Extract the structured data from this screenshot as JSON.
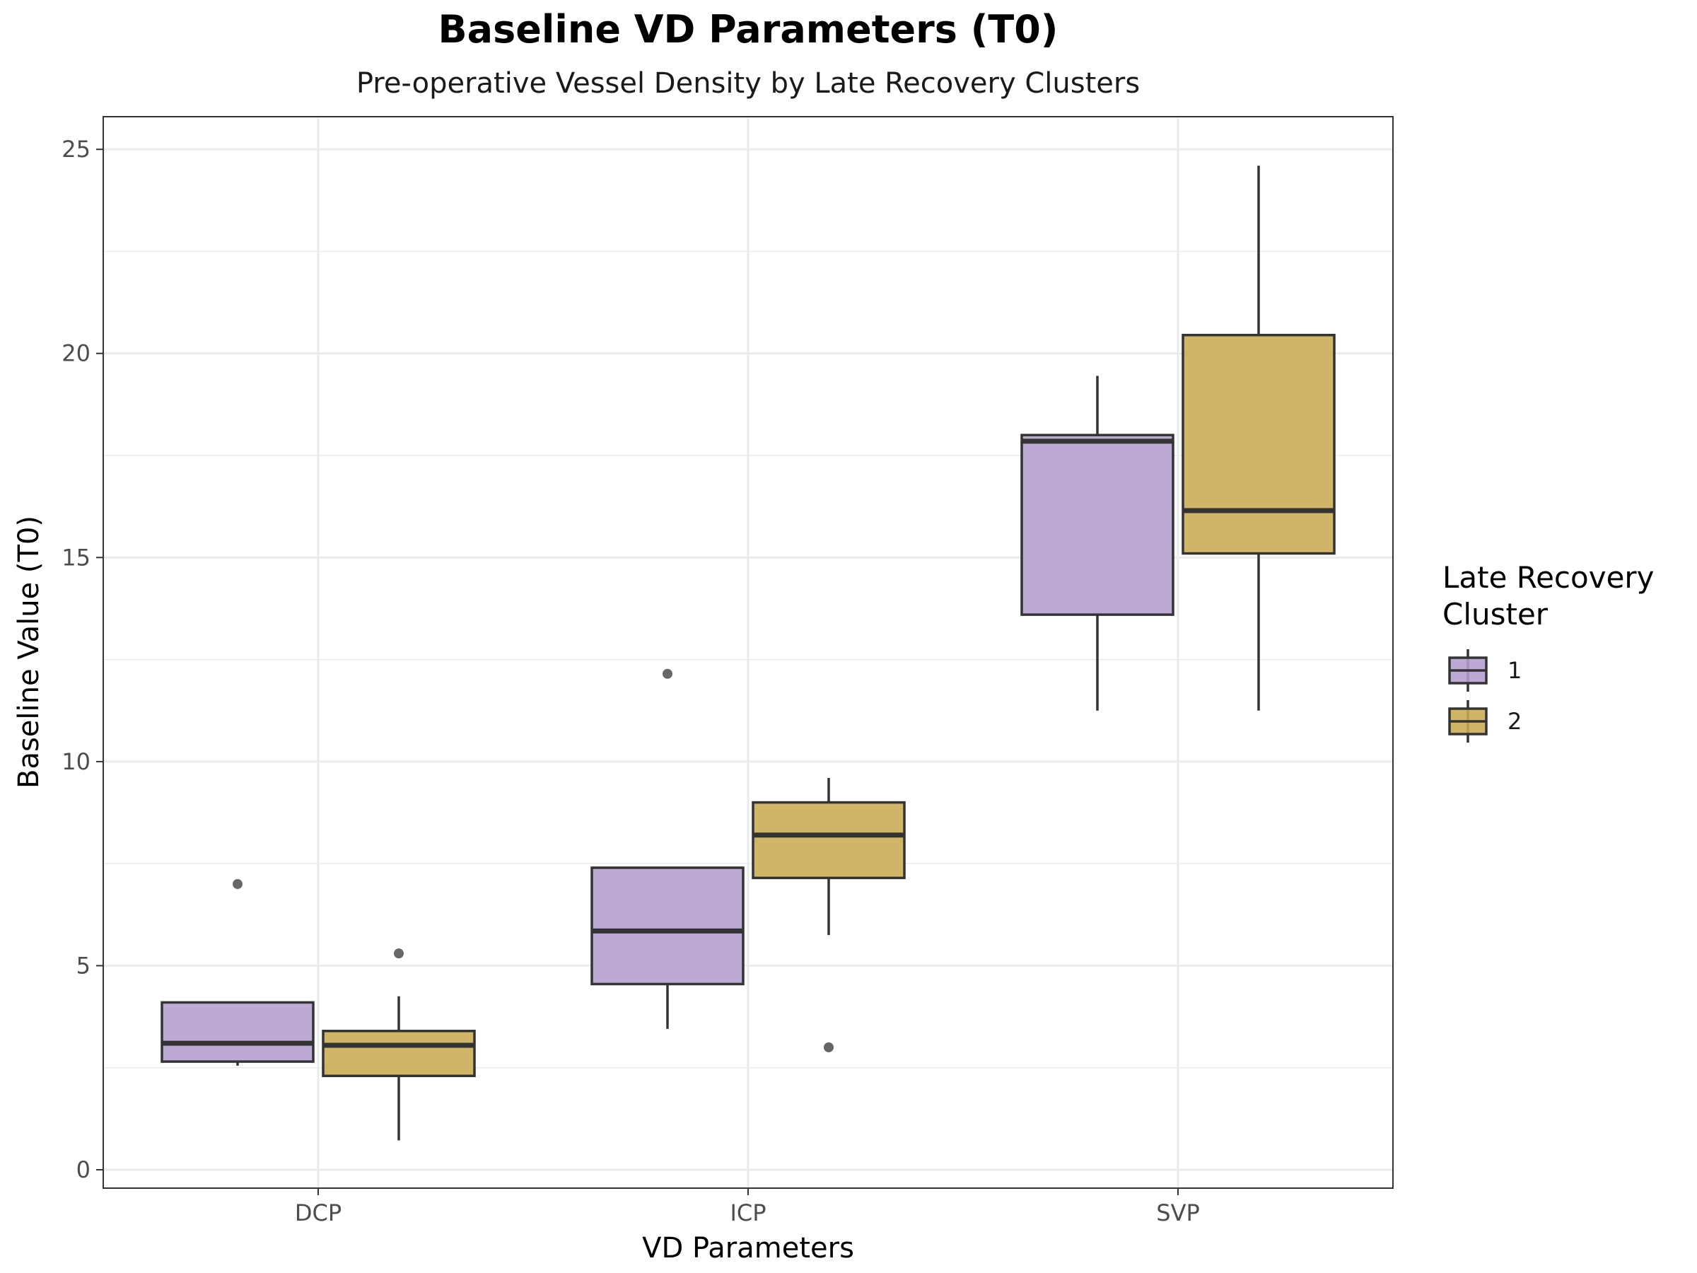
{
  "chart_data": {
    "type": "boxplot",
    "title": "Baseline VD Parameters (T0)",
    "subtitle": "Pre-operative Vessel Density by Late Recovery Clusters",
    "xlabel": "VD Parameters",
    "ylabel": "Baseline Value (T0)",
    "categories": [
      "DCP",
      "ICP",
      "SVP"
    ],
    "y_ticks": [
      "0",
      "5",
      "10",
      "15",
      "20",
      "25"
    ],
    "ylim": [
      -0.45,
      25.8
    ],
    "grid": true,
    "legend": {
      "title_lines": [
        "Late Recovery",
        "Cluster"
      ],
      "placement": "right"
    },
    "series": [
      {
        "name": "1",
        "color": "#B39DCE",
        "boxes": [
          {
            "category": "DCP",
            "whisker_low": 2.55,
            "q1": 2.65,
            "median": 3.1,
            "q3": 4.1,
            "whisker_high": 4.1,
            "outliers": [
              7.0
            ]
          },
          {
            "category": "ICP",
            "whisker_low": 3.45,
            "q1": 4.55,
            "median": 5.85,
            "q3": 7.4,
            "whisker_high": 7.4,
            "outliers": [
              12.15
            ]
          },
          {
            "category": "SVP",
            "whisker_low": 11.25,
            "q1": 13.6,
            "median": 17.85,
            "q3": 18.0,
            "whisker_high": 19.45,
            "outliers": []
          }
        ]
      },
      {
        "name": "2",
        "color": "#C9AB54",
        "boxes": [
          {
            "category": "DCP",
            "whisker_low": 0.72,
            "q1": 2.3,
            "median": 3.05,
            "q3": 3.4,
            "whisker_high": 4.25,
            "outliers": [
              5.3
            ]
          },
          {
            "category": "ICP",
            "whisker_low": 5.75,
            "q1": 7.15,
            "median": 8.2,
            "q3": 9.0,
            "whisker_high": 9.6,
            "outliers": [
              3.0
            ]
          },
          {
            "category": "SVP",
            "whisker_low": 11.25,
            "q1": 15.1,
            "median": 16.15,
            "q3": 20.45,
            "whisker_high": 24.6,
            "outliers": []
          }
        ]
      }
    ]
  }
}
